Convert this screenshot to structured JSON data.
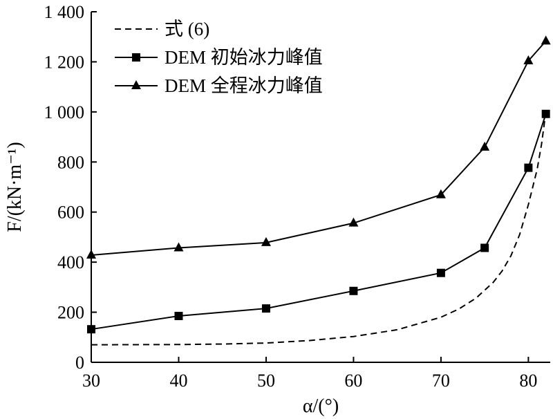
{
  "chart_data": {
    "type": "line",
    "title": "",
    "xlabel": "α/(°)",
    "ylabel": "F/(kN·m⁻¹)",
    "xlim": [
      30,
      82.5
    ],
    "ylim": [
      0,
      1400
    ],
    "x_ticks": [
      30,
      40,
      50,
      60,
      70,
      80
    ],
    "x_tick_labels": [
      "30",
      "40",
      "50",
      "60",
      "70",
      "80"
    ],
    "y_ticks": [
      0,
      200,
      400,
      600,
      800,
      1000,
      1200,
      1400
    ],
    "y_tick_labels": [
      "0",
      "200",
      "400",
      "600",
      "800",
      "1 000",
      "1 200",
      "1 400"
    ],
    "grid": false,
    "legend_position": "top-left",
    "series": [
      {
        "name": "式 (6)",
        "style": "dashed",
        "marker": "none",
        "x": [
          30,
          40,
          45,
          50,
          55,
          60,
          65,
          70,
          72,
          74,
          76,
          77,
          78,
          79,
          80,
          81,
          81.5,
          82
        ],
        "y": [
          70,
          71,
          73,
          77,
          87,
          103,
          130,
          180,
          212,
          256,
          320,
          365,
          425,
          510,
          630,
          770,
          870,
          1000
        ]
      },
      {
        "name": "DEM 初始冰力峰值",
        "style": "solid",
        "marker": "square",
        "x": [
          30,
          40,
          50,
          60,
          70,
          75,
          80,
          82
        ],
        "y": [
          132,
          185,
          215,
          285,
          357,
          457,
          777,
          992
        ]
      },
      {
        "name": "DEM 全程冰力峰值",
        "style": "solid",
        "marker": "triangle",
        "x": [
          30,
          40,
          50,
          60,
          70,
          75,
          80,
          82
        ],
        "y": [
          428,
          457,
          478,
          556,
          669,
          859,
          1204,
          1283
        ]
      }
    ]
  }
}
